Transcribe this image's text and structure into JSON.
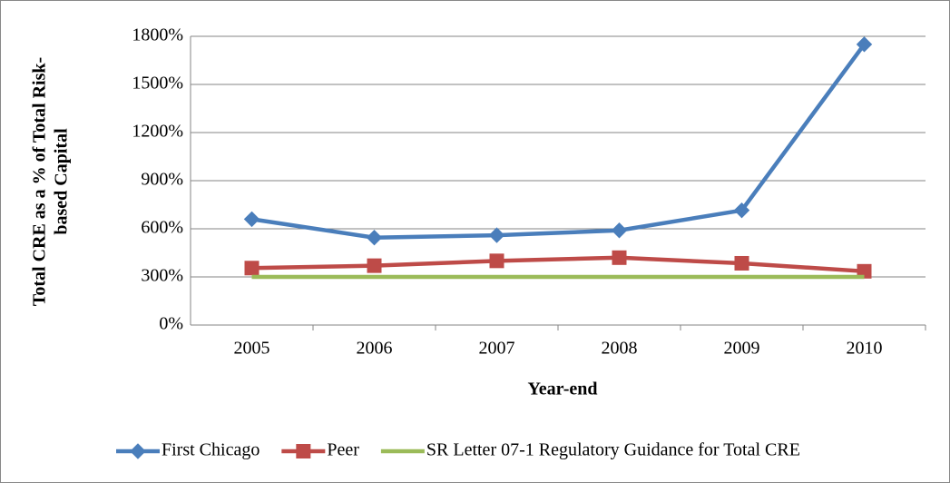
{
  "chart_data": {
    "type": "line",
    "categories": [
      "2005",
      "2006",
      "2007",
      "2008",
      "2009",
      "2010"
    ],
    "series": [
      {
        "name": "First Chicago",
        "color": "#4a7ebb",
        "marker": "diamond",
        "values": [
          660,
          545,
          560,
          590,
          715,
          1750
        ]
      },
      {
        "name": "Peer",
        "color": "#be4b48",
        "marker": "square",
        "values": [
          355,
          370,
          400,
          420,
          385,
          335
        ]
      },
      {
        "name": "SR Letter 07-1 Regulatory Guidance for Total CRE",
        "color": "#9bbb59",
        "marker": "none",
        "values": [
          300,
          300,
          300,
          300,
          300,
          300
        ]
      }
    ],
    "ylim": [
      0,
      1800
    ],
    "yticks": [
      {
        "value": 0,
        "label": "0%"
      },
      {
        "value": 300,
        "label": "300%"
      },
      {
        "value": 600,
        "label": "600%"
      },
      {
        "value": 900,
        "label": "900%"
      },
      {
        "value": 1200,
        "label": "1200%"
      },
      {
        "value": 1500,
        "label": "1500%"
      },
      {
        "value": 1800,
        "label": "1800%"
      }
    ],
    "grid": true,
    "xlabel": "Year-end",
    "ylabel": [
      "Total CRE as a % of Total Risk-",
      "based Capital"
    ],
    "legend": "bottom"
  }
}
